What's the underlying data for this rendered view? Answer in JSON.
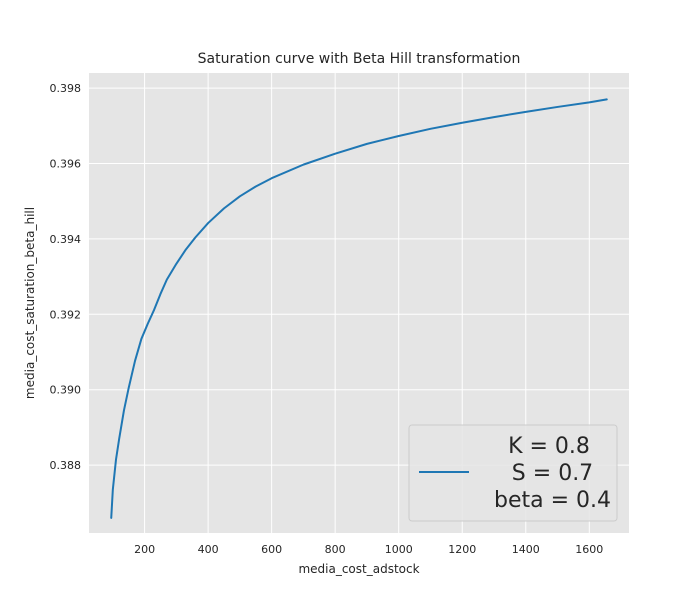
{
  "chart_data": {
    "type": "line",
    "title": "Saturation curve with Beta Hill transformation",
    "xlabel": "media_cost_adstock",
    "ylabel": "media_cost_saturation_beta_hill",
    "xlim": [
      25,
      1725
    ],
    "ylim": [
      0.3862,
      0.3984
    ],
    "xticks": [
      200,
      400,
      600,
      800,
      1000,
      1200,
      1400,
      1600
    ],
    "yticks": [
      0.388,
      0.39,
      0.392,
      0.394,
      0.396,
      0.398
    ],
    "ytick_format": "3",
    "grid": true,
    "legend_position": "lower-right",
    "series": [
      {
        "name": "",
        "color": "#1f77b4",
        "x": [
          95,
          100,
          110,
          120,
          135,
          150,
          170,
          190,
          210,
          230,
          250,
          270,
          300,
          330,
          360,
          400,
          450,
          500,
          550,
          600,
          700,
          800,
          900,
          1000,
          1100,
          1200,
          1300,
          1400,
          1500,
          1600,
          1655
        ],
        "y": [
          0.3866,
          0.38735,
          0.38815,
          0.3887,
          0.38945,
          0.39005,
          0.39077,
          0.39135,
          0.39175,
          0.39212,
          0.39254,
          0.39292,
          0.39334,
          0.39372,
          0.39404,
          0.39442,
          0.39481,
          0.39513,
          0.39539,
          0.39561,
          0.39597,
          0.39626,
          0.39652,
          0.39673,
          0.39692,
          0.39708,
          0.39723,
          0.39737,
          0.3975,
          0.39762,
          0.3977
        ]
      }
    ],
    "legend_lines": [
      "K = 0.8",
      " S = 0.7",
      " beta = 0.4"
    ]
  }
}
